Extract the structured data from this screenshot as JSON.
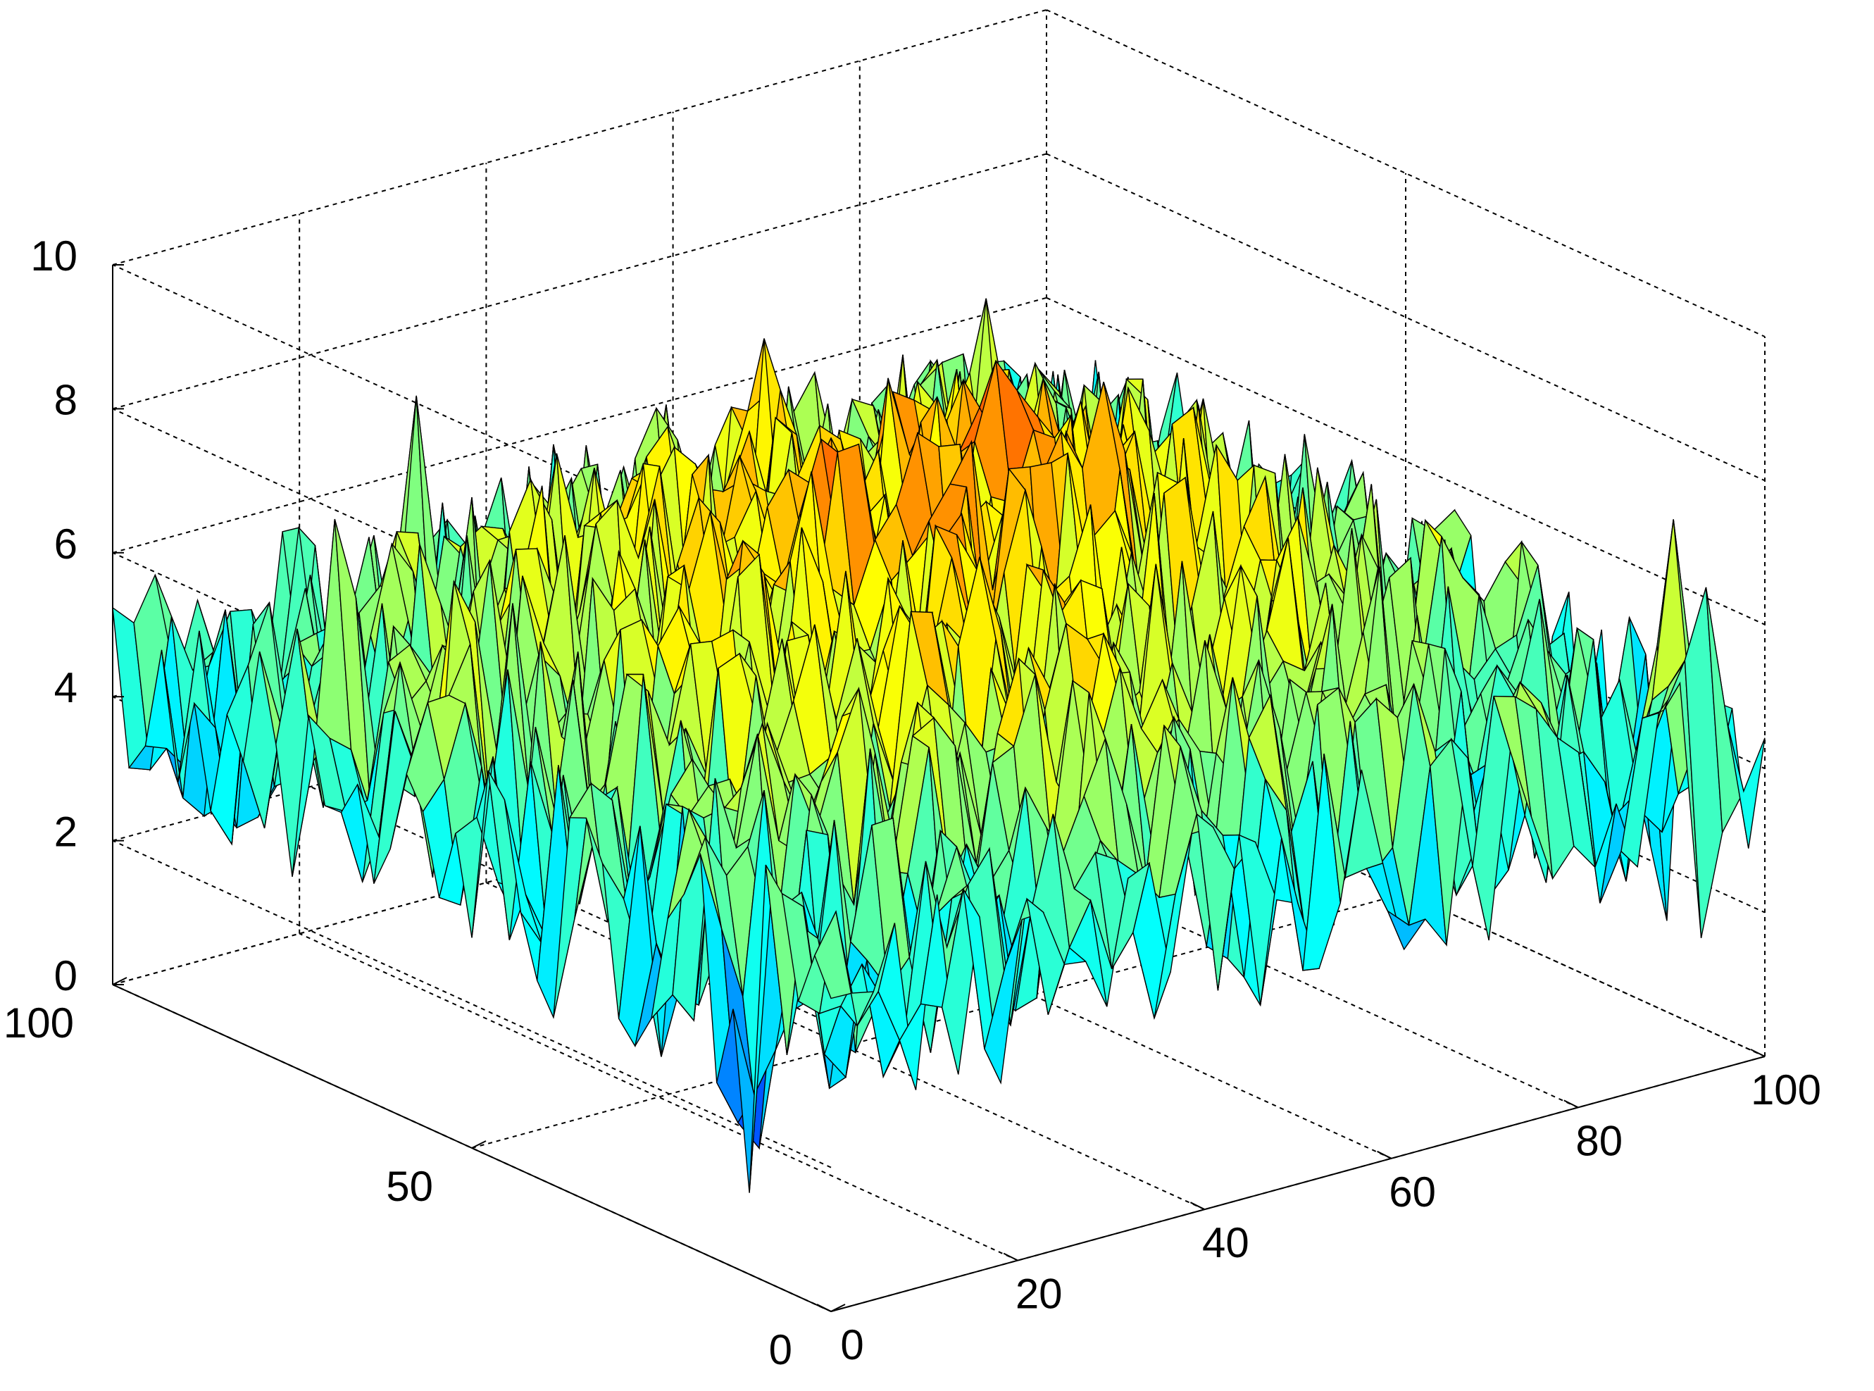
{
  "chart_data": {
    "type": "surface",
    "title": "",
    "xlabel": "",
    "ylabel": "",
    "zlabel": "",
    "grid": true,
    "colormap": "jet",
    "colormap_colors": [
      "#00008f",
      "#0000ff",
      "#0080ff",
      "#00ffff",
      "#80ff80",
      "#ffff00",
      "#ff8000",
      "#ff0000",
      "#800000"
    ],
    "edge_color": "#000000",
    "xlim": [
      0,
      100
    ],
    "ylim": [
      0,
      100
    ],
    "zlim": [
      0,
      10
    ],
    "x_ticks": [
      {
        "value": 0,
        "label": "0"
      },
      {
        "value": 20,
        "label": "20"
      },
      {
        "value": 40,
        "label": "40"
      },
      {
        "value": 60,
        "label": "60"
      },
      {
        "value": 80,
        "label": "80"
      },
      {
        "value": 100,
        "label": "100"
      }
    ],
    "y_ticks": [
      {
        "value": 0,
        "label": "0"
      },
      {
        "value": 50,
        "label": "50"
      },
      {
        "value": 100,
        "label": "100"
      }
    ],
    "z_ticks": [
      {
        "value": 0,
        "label": "0"
      },
      {
        "value": 2,
        "label": "2"
      },
      {
        "value": 4,
        "label": "4"
      },
      {
        "value": 6,
        "label": "6"
      },
      {
        "value": 8,
        "label": "8"
      },
      {
        "value": 10,
        "label": "10"
      }
    ],
    "surface_summary": {
      "grid_size": [
        100,
        100
      ],
      "mean_z_center": 6.5,
      "mean_z_edges": 4.0,
      "noise_amplitude": 1.8,
      "z_range_observed": [
        0.5,
        9.5
      ]
    }
  }
}
